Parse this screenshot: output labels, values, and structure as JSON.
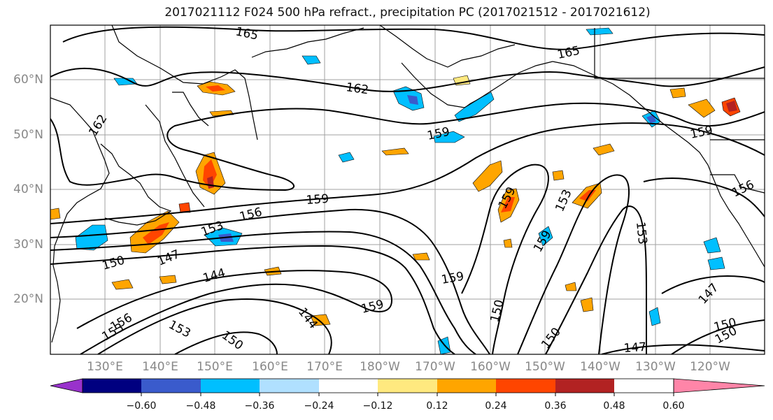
{
  "title": "2017021112 F024 500 hPa refract., precipitation PC (2017021512 - 2017021612)",
  "lat_labels": [
    "60°N",
    "50°N",
    "40°N",
    "30°N",
    "20°N"
  ],
  "lon_labels": [
    "130°E",
    "140°E",
    "150°E",
    "160°E",
    "170°E",
    "180°W",
    "170°W",
    "160°W",
    "150°W",
    "140°W",
    "130°W",
    "120°W"
  ],
  "contour_labels": [
    "165",
    "165",
    "162",
    "162",
    "159",
    "159",
    "159",
    "159",
    "159",
    "159",
    "156",
    "156",
    "153",
    "153",
    "153",
    "153",
    "150",
    "150",
    "150",
    "150",
    "150",
    "150",
    "147",
    "147",
    "147",
    "144",
    "144",
    "159",
    "153",
    "156"
  ],
  "colorbar": {
    "ticks": [
      "−0.60",
      "−0.48",
      "−0.36",
      "−0.24",
      "−0.12",
      "0.12",
      "0.24",
      "0.36",
      "0.48",
      "0.60"
    ],
    "colors": [
      "#9932cc",
      "#000080",
      "#3a5bcc",
      "#00bfff",
      "#b0e0ff",
      "#ffffff",
      "#ffe97f",
      "#ffa500",
      "#ff4500",
      "#b22222",
      "#ff85a8"
    ]
  }
}
